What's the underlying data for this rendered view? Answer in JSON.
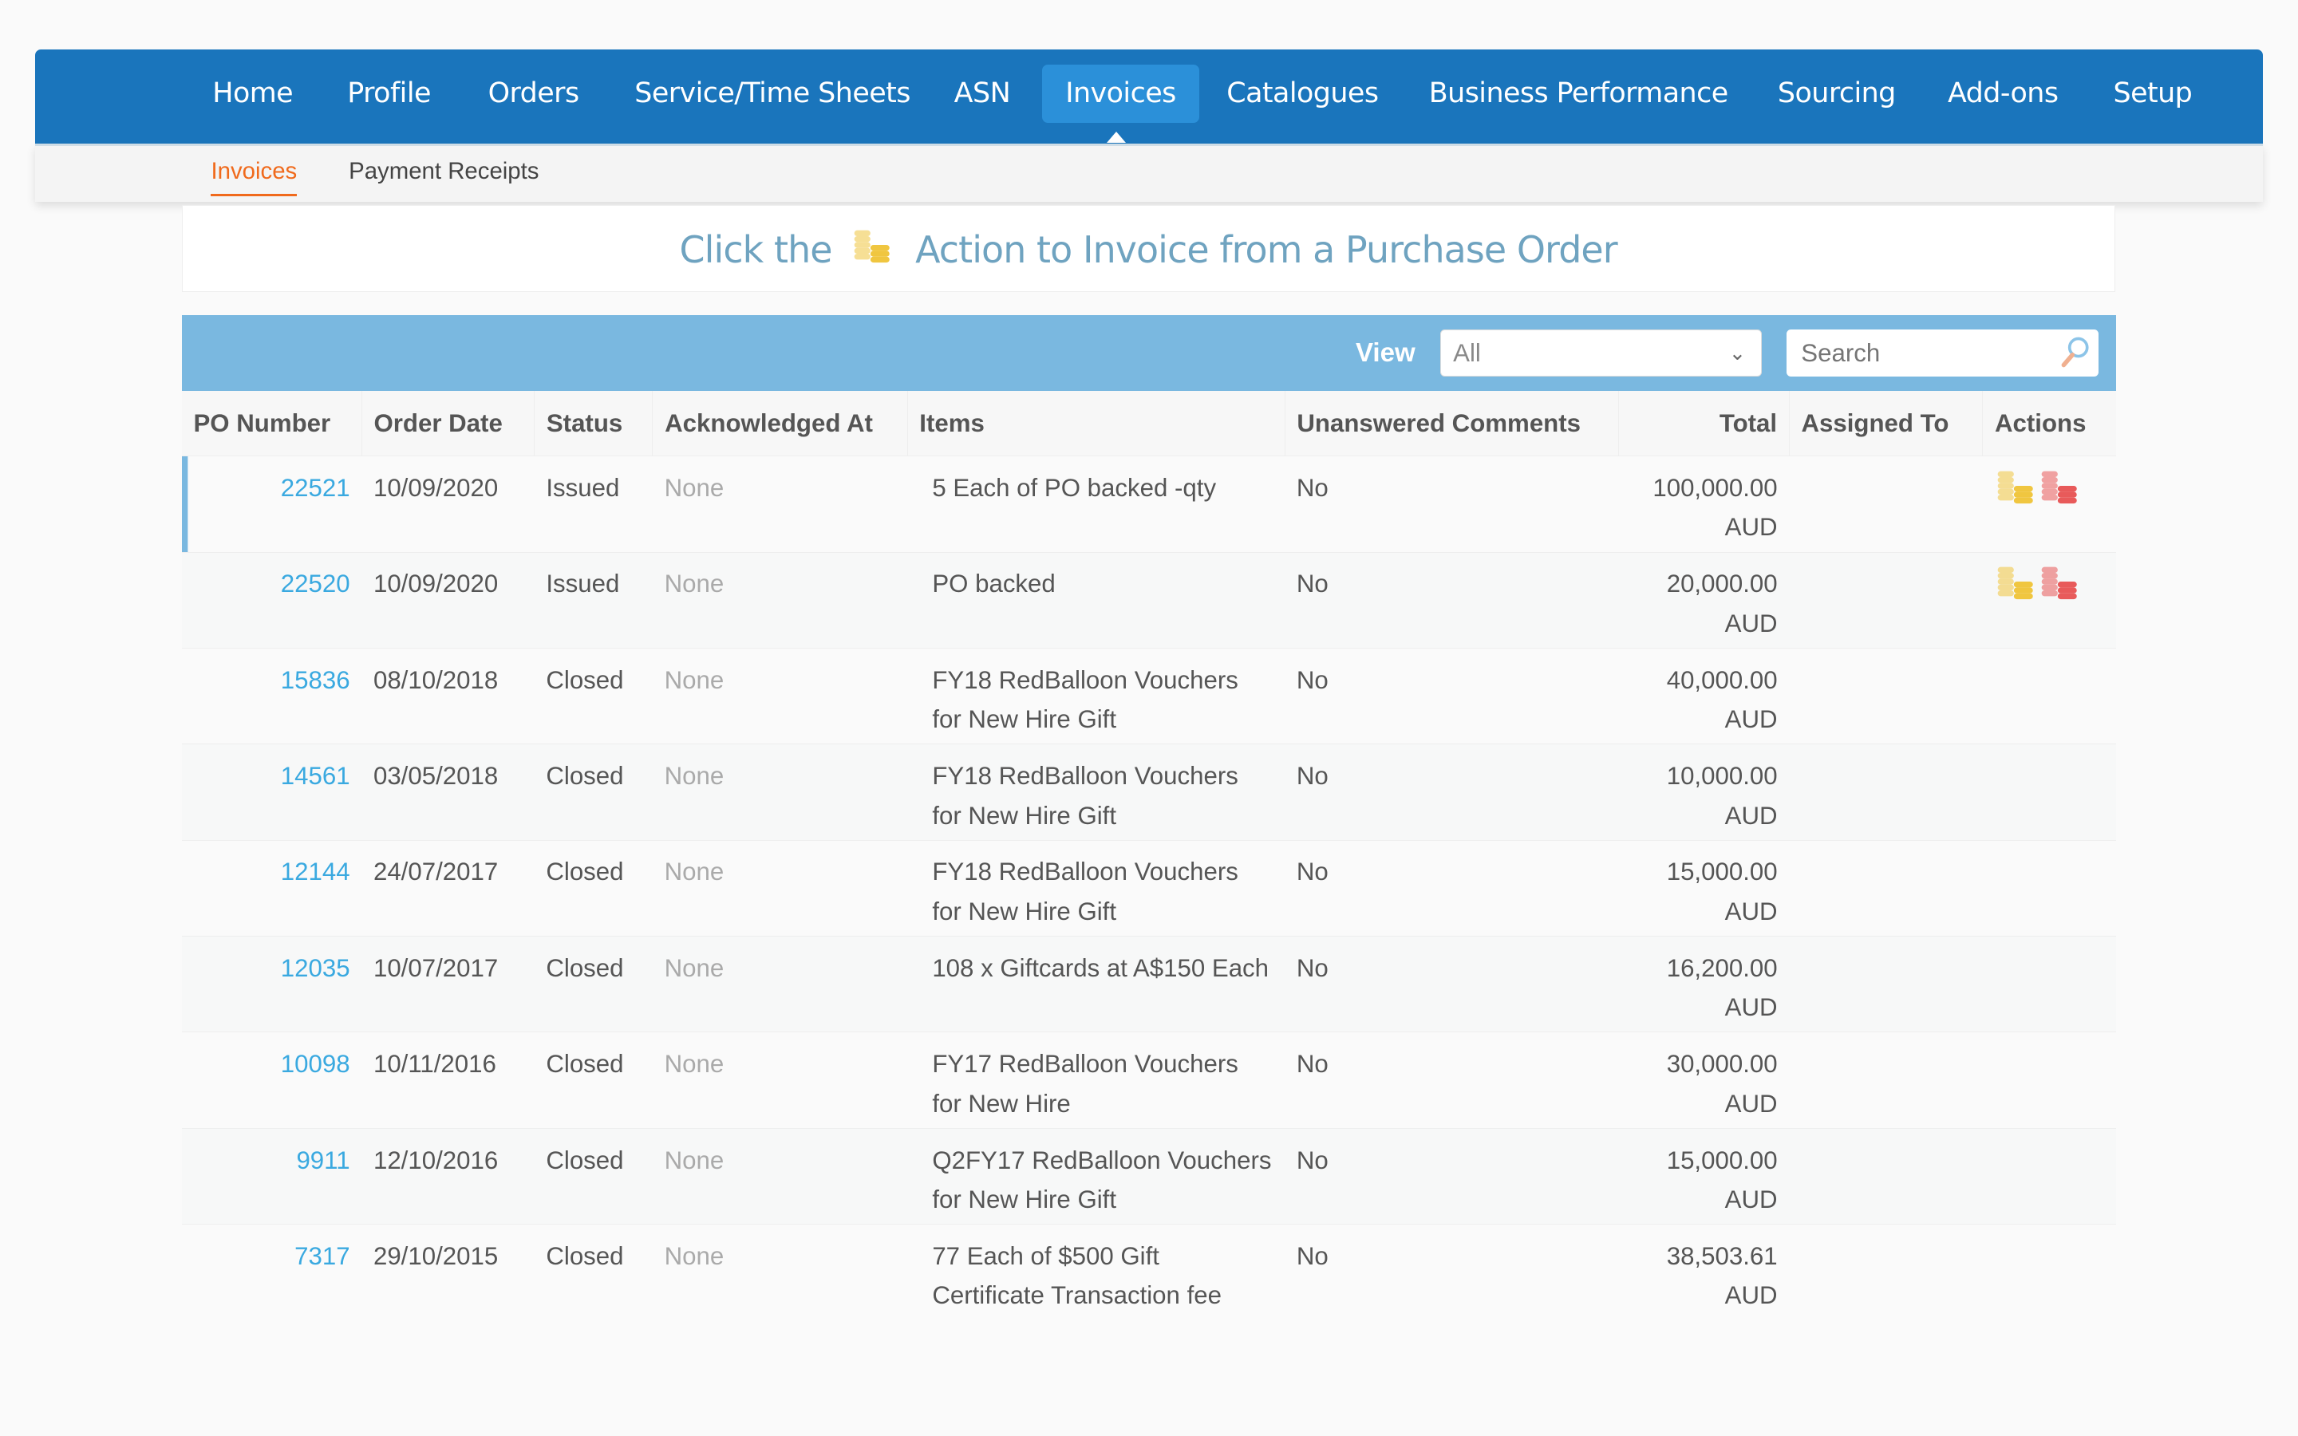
{
  "nav": {
    "items": [
      "Home",
      "Profile",
      "Orders",
      "Service/Time Sheets",
      "ASN",
      "Invoices",
      "Catalogues",
      "Business Performance",
      "Sourcing",
      "Add-ons",
      "Setup"
    ],
    "active": "Invoices"
  },
  "subnav": {
    "items": [
      "Invoices",
      "Payment Receipts"
    ],
    "active": "Invoices"
  },
  "banner": {
    "before": "Click the",
    "icon": "coins-icon",
    "after": "Action to Invoice from a Purchase Order"
  },
  "toolbar": {
    "view_label": "View",
    "view_value": "All",
    "search_placeholder": "Search"
  },
  "table": {
    "headers": [
      "PO Number",
      "Order Date",
      "Status",
      "Acknowledged At",
      "Items",
      "Unanswered Comments",
      "Total",
      "Assigned To",
      "Actions"
    ],
    "rows": [
      {
        "po": "22521",
        "date": "10/09/2020",
        "status": "Issued",
        "ack": "None",
        "items": "5 Each of PO backed -qty",
        "comments": "No",
        "total": "100,000.00",
        "currency": "AUD",
        "assigned": "",
        "actions": true
      },
      {
        "po": "22520",
        "date": "10/09/2020",
        "status": "Issued",
        "ack": "None",
        "items": "PO backed",
        "comments": "No",
        "total": "20,000.00",
        "currency": "AUD",
        "assigned": "",
        "actions": true
      },
      {
        "po": "15836",
        "date": "08/10/2018",
        "status": "Closed",
        "ack": "None",
        "items": "FY18 RedBalloon Vouchers for New Hire Gift",
        "comments": "No",
        "total": "40,000.00",
        "currency": "AUD",
        "assigned": "",
        "actions": false
      },
      {
        "po": "14561",
        "date": "03/05/2018",
        "status": "Closed",
        "ack": "None",
        "items": "FY18 RedBalloon Vouchers for New Hire Gift",
        "comments": "No",
        "total": "10,000.00",
        "currency": "AUD",
        "assigned": "",
        "actions": false
      },
      {
        "po": "12144",
        "date": "24/07/2017",
        "status": "Closed",
        "ack": "None",
        "items": "FY18 RedBalloon Vouchers for New Hire Gift",
        "comments": "No",
        "total": "15,000.00",
        "currency": "AUD",
        "assigned": "",
        "actions": false
      },
      {
        "po": "12035",
        "date": "10/07/2017",
        "status": "Closed",
        "ack": "None",
        "items": "108 x Giftcards at A$150 Each",
        "comments": "No",
        "total": "16,200.00",
        "currency": "AUD",
        "assigned": "",
        "actions": false
      },
      {
        "po": "10098",
        "date": "10/11/2016",
        "status": "Closed",
        "ack": "None",
        "items": "FY17 RedBalloon Vouchers for New Hire",
        "comments": "No",
        "total": "30,000.00",
        "currency": "AUD",
        "assigned": "",
        "actions": false
      },
      {
        "po": "9911",
        "date": "12/10/2016",
        "status": "Closed",
        "ack": "None",
        "items": "Q2FY17 RedBalloon Vouchers for New Hire Gift",
        "comments": "No",
        "total": "15,000.00",
        "currency": "AUD",
        "assigned": "",
        "actions": false
      },
      {
        "po": "7317",
        "date": "29/10/2015",
        "status": "Closed",
        "ack": "None",
        "items": "77 Each of $500 Gift Certificate Transaction fee",
        "comments": "No",
        "total": "38,503.61",
        "currency": "AUD",
        "assigned": "",
        "actions": false
      }
    ]
  },
  "colors": {
    "nav": "#1a75bc",
    "nav_active": "#2b90d9",
    "toolbar": "#7ab8e0",
    "accent_orange": "#f06a1c",
    "link": "#3aa9e0",
    "coin_yellow": "#f0c640",
    "coin_red": "#e85a5a"
  }
}
